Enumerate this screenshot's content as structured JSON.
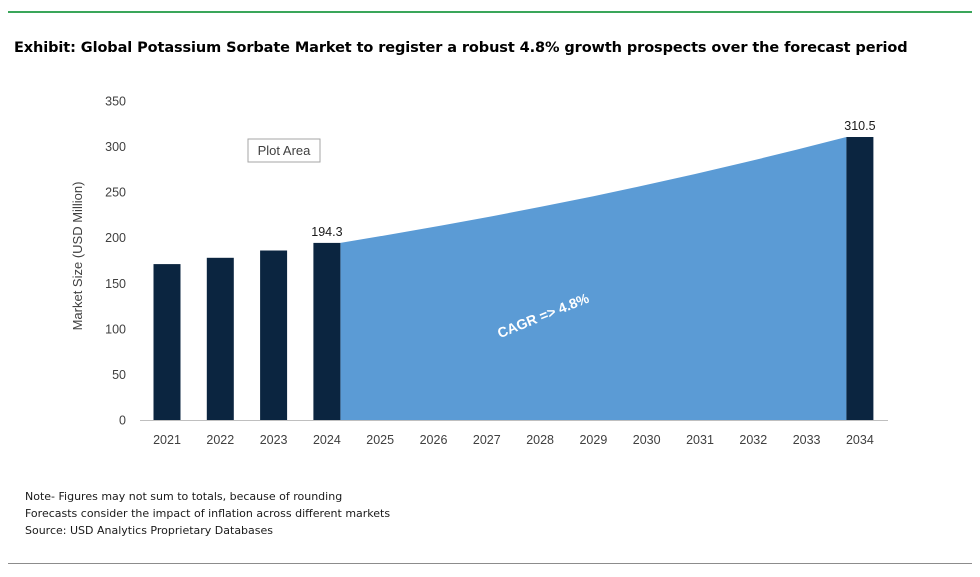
{
  "title": "Exhibit: Global Potassium Sorbate Market to register a robust 4.8% growth prospects over the forecast period",
  "plot_area_label": "Plot Area",
  "cagr_label": "CAGR => 4.8%",
  "notes": [
    "Note- Figures may not sum to totals, because of rounding",
    "Forecasts consider the impact of inflation across different markets",
    "Source: USD Analytics Proprietary Databases"
  ],
  "colors": {
    "bar": "#0b2540",
    "area": "#5b9bd5",
    "accent_rule": "#3aa65a"
  },
  "chart_data": {
    "type": "bar",
    "categories": [
      "2021",
      "2022",
      "2023",
      "2024",
      "2025",
      "2026",
      "2027",
      "2028",
      "2029",
      "2030",
      "2031",
      "2032",
      "2033",
      "2034"
    ],
    "bars": [
      {
        "category": "2021",
        "value": 171
      },
      {
        "category": "2022",
        "value": 178
      },
      {
        "category": "2023",
        "value": 186
      },
      {
        "category": "2024",
        "value": 194.3,
        "label": "194.3"
      },
      {
        "category": "2034",
        "value": 310.5,
        "label": "310.5"
      }
    ],
    "forecast_area": {
      "categories": [
        "2024",
        "2025",
        "2026",
        "2027",
        "2028",
        "2029",
        "2030",
        "2031",
        "2032",
        "2033",
        "2034"
      ],
      "values": [
        194.3,
        203.6,
        213.4,
        223.6,
        234.4,
        245.6,
        257.4,
        269.8,
        282.7,
        296.3,
        310.5
      ]
    },
    "ylabel": "Market Size (USD Million)",
    "ylim": [
      0,
      350
    ],
    "yticks": [
      0,
      50,
      100,
      150,
      200,
      250,
      300,
      350
    ],
    "grid": false
  }
}
